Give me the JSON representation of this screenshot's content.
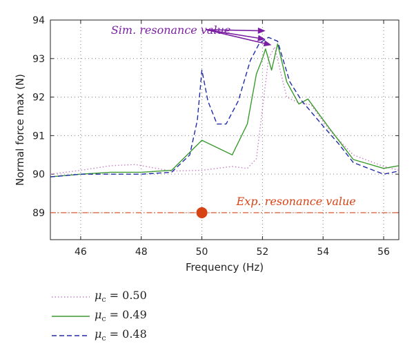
{
  "chart_data": {
    "type": "line",
    "xlabel": "Frequency (Hz)",
    "ylabel": "Normal force max (N)",
    "xlim": [
      45,
      56.5
    ],
    "ylim": [
      88.3,
      94
    ],
    "xticks": [
      46,
      48,
      50,
      52,
      54,
      56
    ],
    "yticks": [
      89,
      90,
      91,
      92,
      93,
      94
    ],
    "grid": true,
    "series": [
      {
        "name": "μc = 0.50",
        "legend_symbol": "μ",
        "legend_subscript": "c",
        "legend_value": " = 0.50",
        "color": "#c77cc4",
        "dash": "dotted",
        "x": [
          45,
          46,
          47,
          47.8,
          48.5,
          49,
          50,
          51,
          51.5,
          51.8,
          52.0,
          52.2,
          52.4,
          52.8,
          53.2,
          53.6,
          54.2,
          55,
          56,
          56.5
        ],
        "y": [
          90.0,
          90.1,
          90.22,
          90.25,
          90.15,
          90.08,
          90.1,
          90.2,
          90.15,
          90.4,
          91.7,
          93.0,
          93.3,
          92.0,
          91.85,
          91.8,
          91.15,
          90.5,
          90.2,
          90.1
        ]
      },
      {
        "name": "μc = 0.49",
        "legend_symbol": "μ",
        "legend_subscript": "c",
        "legend_value": " = 0.49",
        "color": "#3a9a2e",
        "dash": "solid",
        "x": [
          45,
          46,
          47,
          48,
          49,
          50,
          51,
          51.5,
          51.8,
          52.0,
          52.1,
          52.3,
          52.5,
          52.8,
          53.2,
          53.5,
          54.2,
          55,
          56,
          56.5
        ],
        "y": [
          89.93,
          90.0,
          90.05,
          90.05,
          90.1,
          90.88,
          90.5,
          91.3,
          92.6,
          93.0,
          93.25,
          92.7,
          93.38,
          92.4,
          91.82,
          91.95,
          91.2,
          90.38,
          90.15,
          90.22
        ]
      },
      {
        "name": "μc = 0.48",
        "legend_symbol": "μ",
        "legend_subscript": "c",
        "legend_value": " = 0.48",
        "color": "#1f2aa8",
        "dash": "dashed",
        "x": [
          45,
          46,
          47,
          48,
          49,
          49.6,
          49.85,
          50.0,
          50.2,
          50.5,
          50.8,
          51.2,
          51.6,
          51.9,
          52.2,
          52.5,
          52.9,
          53.3,
          54.0,
          54.5,
          55,
          56,
          56.5
        ],
        "y": [
          89.93,
          90.0,
          90.0,
          90.0,
          90.05,
          90.5,
          91.4,
          92.7,
          91.9,
          91.3,
          91.3,
          91.9,
          92.95,
          93.4,
          93.55,
          93.45,
          92.4,
          91.9,
          91.25,
          90.8,
          90.3,
          90.0,
          90.08
        ]
      }
    ],
    "experimental": {
      "value": 89.0,
      "point_x": 50.0,
      "color": "#d84315",
      "label": "Exp. resonance value"
    },
    "annotation": {
      "label": "Sim. resonance value",
      "color": "#7b1fa2",
      "text_at": [
        47.0,
        93.75
      ],
      "arrow_from": [
        50.0,
        93.75
      ],
      "arrow_targets": [
        [
          52.1,
          93.72
        ],
        [
          52.1,
          93.5
        ],
        [
          52.3,
          93.35
        ]
      ]
    }
  }
}
